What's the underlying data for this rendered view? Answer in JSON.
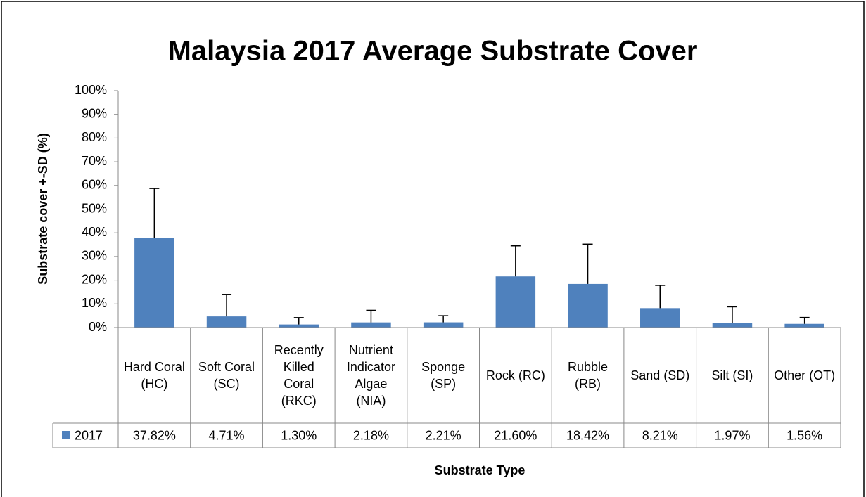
{
  "chart_data": {
    "type": "bar",
    "title": "Malaysia 2017 Average Substrate Cover",
    "y_label": "Substrate cover +-SD (%)",
    "x_label": "Substrate Type",
    "categories": [
      "Hard Coral (HC)",
      "Soft Coral (SC)",
      "Recently Killed Coral (RKC)",
      "Nutrient Indicator Algae (NIA)",
      "Sponge (SP)",
      "Rock (RC)",
      "Rubble (RB)",
      "Sand (SD)",
      "Silt (SI)",
      "Other (OT)"
    ],
    "series": [
      {
        "name": "2017",
        "color": "#4f81bd",
        "values": [
          37.82,
          4.71,
          1.3,
          2.18,
          2.21,
          21.6,
          18.42,
          8.21,
          1.97,
          1.56
        ],
        "value_labels": [
          "37.82%",
          "4.71%",
          "1.30%",
          "2.18%",
          "2.21%",
          "21.60%",
          "18.42%",
          "8.21%",
          "1.97%",
          "1.56%"
        ],
        "errors": [
          20.9,
          9.3,
          2.9,
          5.1,
          2.8,
          12.9,
          16.8,
          9.6,
          6.8,
          2.7
        ]
      }
    ],
    "ylim": [
      0,
      100
    ],
    "yticks": [
      {
        "value": 0,
        "label": "0%"
      },
      {
        "value": 10,
        "label": "10%"
      },
      {
        "value": 20,
        "label": "20%"
      },
      {
        "value": 30,
        "label": "30%"
      },
      {
        "value": 40,
        "label": "40%"
      },
      {
        "value": 50,
        "label": "50%"
      },
      {
        "value": 60,
        "label": "60%"
      },
      {
        "value": 70,
        "label": "70%"
      },
      {
        "value": 80,
        "label": "80%"
      },
      {
        "value": 90,
        "label": "90%"
      },
      {
        "value": 100,
        "label": "100%"
      }
    ],
    "grid": false
  }
}
